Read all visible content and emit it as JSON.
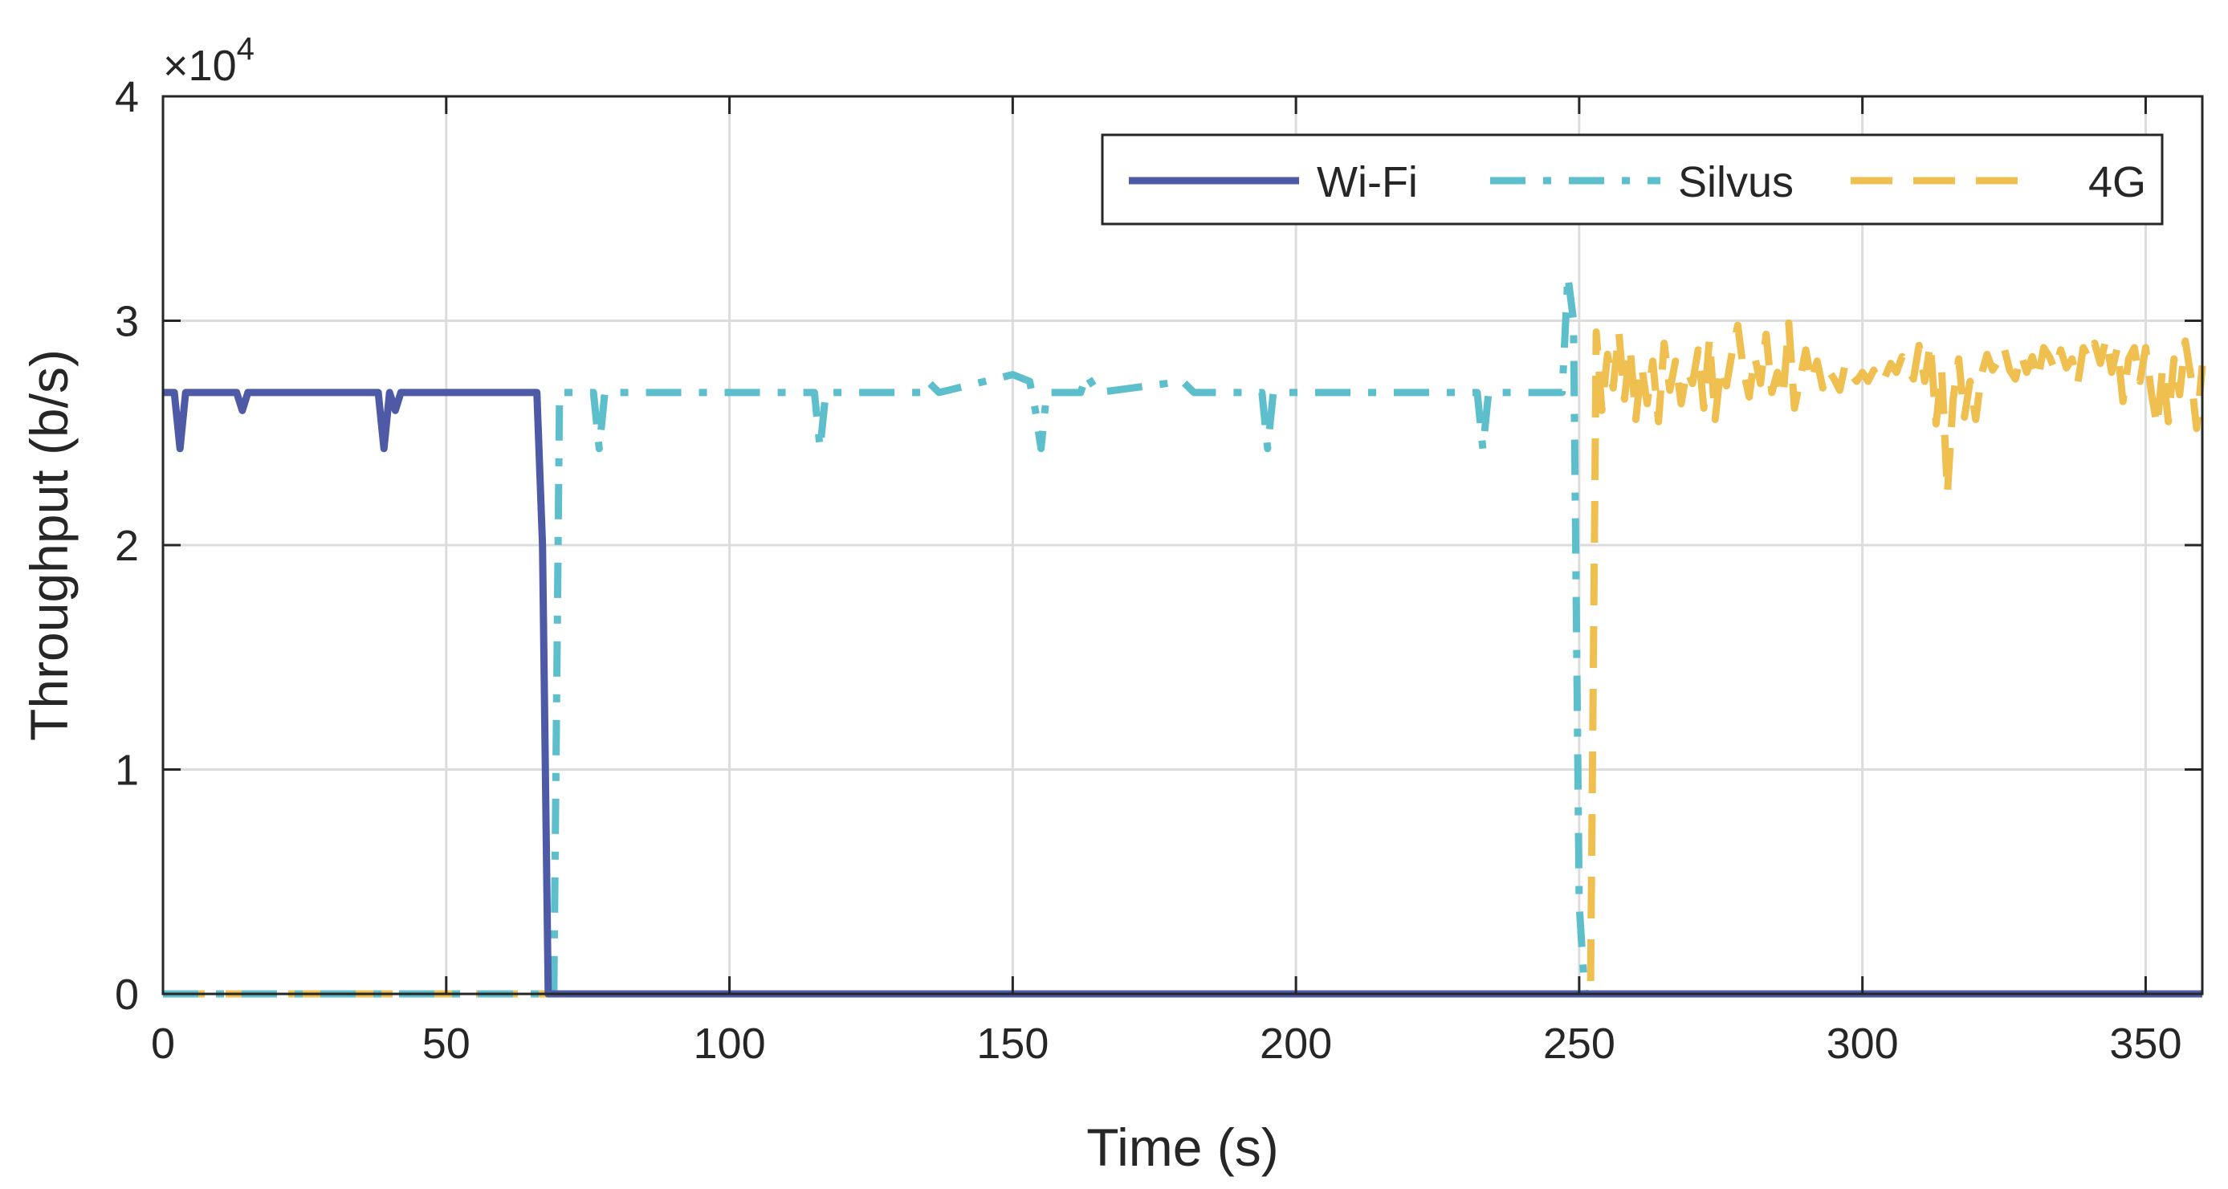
{
  "chart_data": {
    "type": "line",
    "title": "",
    "xlabel": "Time (s)",
    "ylabel": "Throughput (b/s)",
    "y_multiplier": "×10",
    "y_multiplier_exponent": "4",
    "xlim": [
      0,
      360
    ],
    "ylim": [
      0,
      40000
    ],
    "xticks": [
      0,
      50,
      100,
      150,
      200,
      250,
      300,
      350
    ],
    "xtick_labels": [
      "0",
      "50",
      "100",
      "150",
      "200",
      "250",
      "300",
      "350"
    ],
    "yticks": [
      0,
      10000,
      20000,
      30000,
      40000
    ],
    "ytick_labels": [
      "0",
      "1",
      "2",
      "3",
      "4"
    ],
    "grid": true,
    "legend_position": "top-right",
    "legend_orientation": "horizontal",
    "series": [
      {
        "name": "Wi-Fi",
        "color": "#4e5aa5",
        "style": "solid",
        "points": [
          [
            0,
            26800
          ],
          [
            1,
            26800
          ],
          [
            2,
            26800
          ],
          [
            3,
            24300
          ],
          [
            4,
            26800
          ],
          [
            13,
            26800
          ],
          [
            14,
            26000
          ],
          [
            15,
            26800
          ],
          [
            38,
            26800
          ],
          [
            39,
            24300
          ],
          [
            40,
            26800
          ],
          [
            41,
            26000
          ],
          [
            42,
            26800
          ],
          [
            66,
            26800
          ],
          [
            67,
            20000
          ],
          [
            68,
            0
          ],
          [
            360,
            0
          ]
        ]
      },
      {
        "name": "Silvus",
        "color": "#5dbfcb",
        "style": "dashdot",
        "points": [
          [
            0,
            0
          ],
          [
            69,
            0
          ],
          [
            70,
            26800
          ],
          [
            76,
            26800
          ],
          [
            77,
            24300
          ],
          [
            78,
            26800
          ],
          [
            115,
            26800
          ],
          [
            116,
            24300
          ],
          [
            117,
            26800
          ],
          [
            134,
            26800
          ],
          [
            135,
            27300
          ],
          [
            137,
            26800
          ],
          [
            150,
            27600
          ],
          [
            153,
            27300
          ],
          [
            154,
            26000
          ],
          [
            155,
            24300
          ],
          [
            156,
            26800
          ],
          [
            162,
            26800
          ],
          [
            163,
            27600
          ],
          [
            165,
            26800
          ],
          [
            180,
            27300
          ],
          [
            182,
            26800
          ],
          [
            194,
            26800
          ],
          [
            195,
            24300
          ],
          [
            196,
            26800
          ],
          [
            232,
            26800
          ],
          [
            233,
            24300
          ],
          [
            234,
            26800
          ],
          [
            247,
            26800
          ],
          [
            248,
            32000
          ],
          [
            249,
            30000
          ],
          [
            250,
            4000
          ],
          [
            251,
            0
          ],
          [
            360,
            0
          ]
        ]
      },
      {
        "name": "4G",
        "color": "#efbf4f",
        "style": "dashed",
        "points": [
          [
            0,
            0
          ],
          [
            252,
            0
          ],
          [
            253,
            29500
          ],
          [
            254,
            26000
          ],
          [
            255,
            28500
          ],
          [
            256,
            27000
          ],
          [
            257,
            29500
          ],
          [
            258,
            26500
          ],
          [
            259,
            28800
          ],
          [
            260,
            25600
          ],
          [
            261,
            28000
          ],
          [
            262,
            26300
          ],
          [
            263,
            28200
          ],
          [
            264,
            25500
          ],
          [
            265,
            29000
          ],
          [
            266,
            26900
          ],
          [
            267,
            28200
          ],
          [
            268,
            26300
          ],
          [
            269,
            27800
          ],
          [
            270,
            27200
          ],
          [
            271,
            28700
          ],
          [
            272,
            26100
          ],
          [
            273,
            29200
          ],
          [
            274,
            25600
          ],
          [
            275,
            27900
          ],
          [
            276,
            27100
          ],
          [
            277,
            28600
          ],
          [
            278,
            29800
          ],
          [
            279,
            27800
          ],
          [
            280,
            26600
          ],
          [
            281,
            28400
          ],
          [
            282,
            27200
          ],
          [
            283,
            29400
          ],
          [
            284,
            26800
          ],
          [
            285,
            27700
          ],
          [
            286,
            26600
          ],
          [
            287,
            29900
          ],
          [
            288,
            26100
          ],
          [
            289,
            27400
          ],
          [
            290,
            28700
          ],
          [
            291,
            27300
          ],
          [
            292,
            28200
          ],
          [
            293,
            27000
          ],
          [
            294,
            27800
          ],
          [
            295,
            27400
          ],
          [
            296,
            26900
          ],
          [
            297,
            28100
          ],
          [
            298,
            27600
          ],
          [
            299,
            27300
          ],
          [
            300,
            27700
          ],
          [
            301,
            27300
          ],
          [
            302,
            27800
          ],
          [
            303,
            27200
          ],
          [
            304,
            27500
          ],
          [
            305,
            28100
          ],
          [
            306,
            27700
          ],
          [
            307,
            28400
          ],
          [
            308,
            27900
          ],
          [
            309,
            27400
          ],
          [
            310,
            28900
          ],
          [
            311,
            27300
          ],
          [
            312,
            29000
          ],
          [
            313,
            25400
          ],
          [
            314,
            27800
          ],
          [
            315,
            22300
          ],
          [
            316,
            26500
          ],
          [
            317,
            28300
          ],
          [
            318,
            25700
          ],
          [
            319,
            27300
          ],
          [
            320,
            25600
          ],
          [
            321,
            27600
          ],
          [
            322,
            28500
          ],
          [
            323,
            27800
          ],
          [
            324,
            28200
          ],
          [
            325,
            28800
          ],
          [
            326,
            27800
          ],
          [
            327,
            27400
          ],
          [
            328,
            28500
          ],
          [
            329,
            27700
          ],
          [
            330,
            28400
          ],
          [
            331,
            27400
          ],
          [
            332,
            28800
          ],
          [
            333,
            28400
          ],
          [
            334,
            27800
          ],
          [
            335,
            28700
          ],
          [
            336,
            27900
          ],
          [
            337,
            28300
          ],
          [
            338,
            27200
          ],
          [
            339,
            28800
          ],
          [
            340,
            28300
          ],
          [
            341,
            29000
          ],
          [
            342,
            28100
          ],
          [
            343,
            29200
          ],
          [
            344,
            27700
          ],
          [
            345,
            28800
          ],
          [
            346,
            26400
          ],
          [
            347,
            28300
          ],
          [
            348,
            28800
          ],
          [
            349,
            27300
          ],
          [
            350,
            28800
          ],
          [
            351,
            26800
          ],
          [
            352,
            25300
          ],
          [
            353,
            27900
          ],
          [
            354,
            25500
          ],
          [
            355,
            28300
          ],
          [
            356,
            26700
          ],
          [
            357,
            29100
          ],
          [
            358,
            27500
          ],
          [
            359,
            25200
          ],
          [
            360,
            28000
          ]
        ]
      }
    ]
  }
}
